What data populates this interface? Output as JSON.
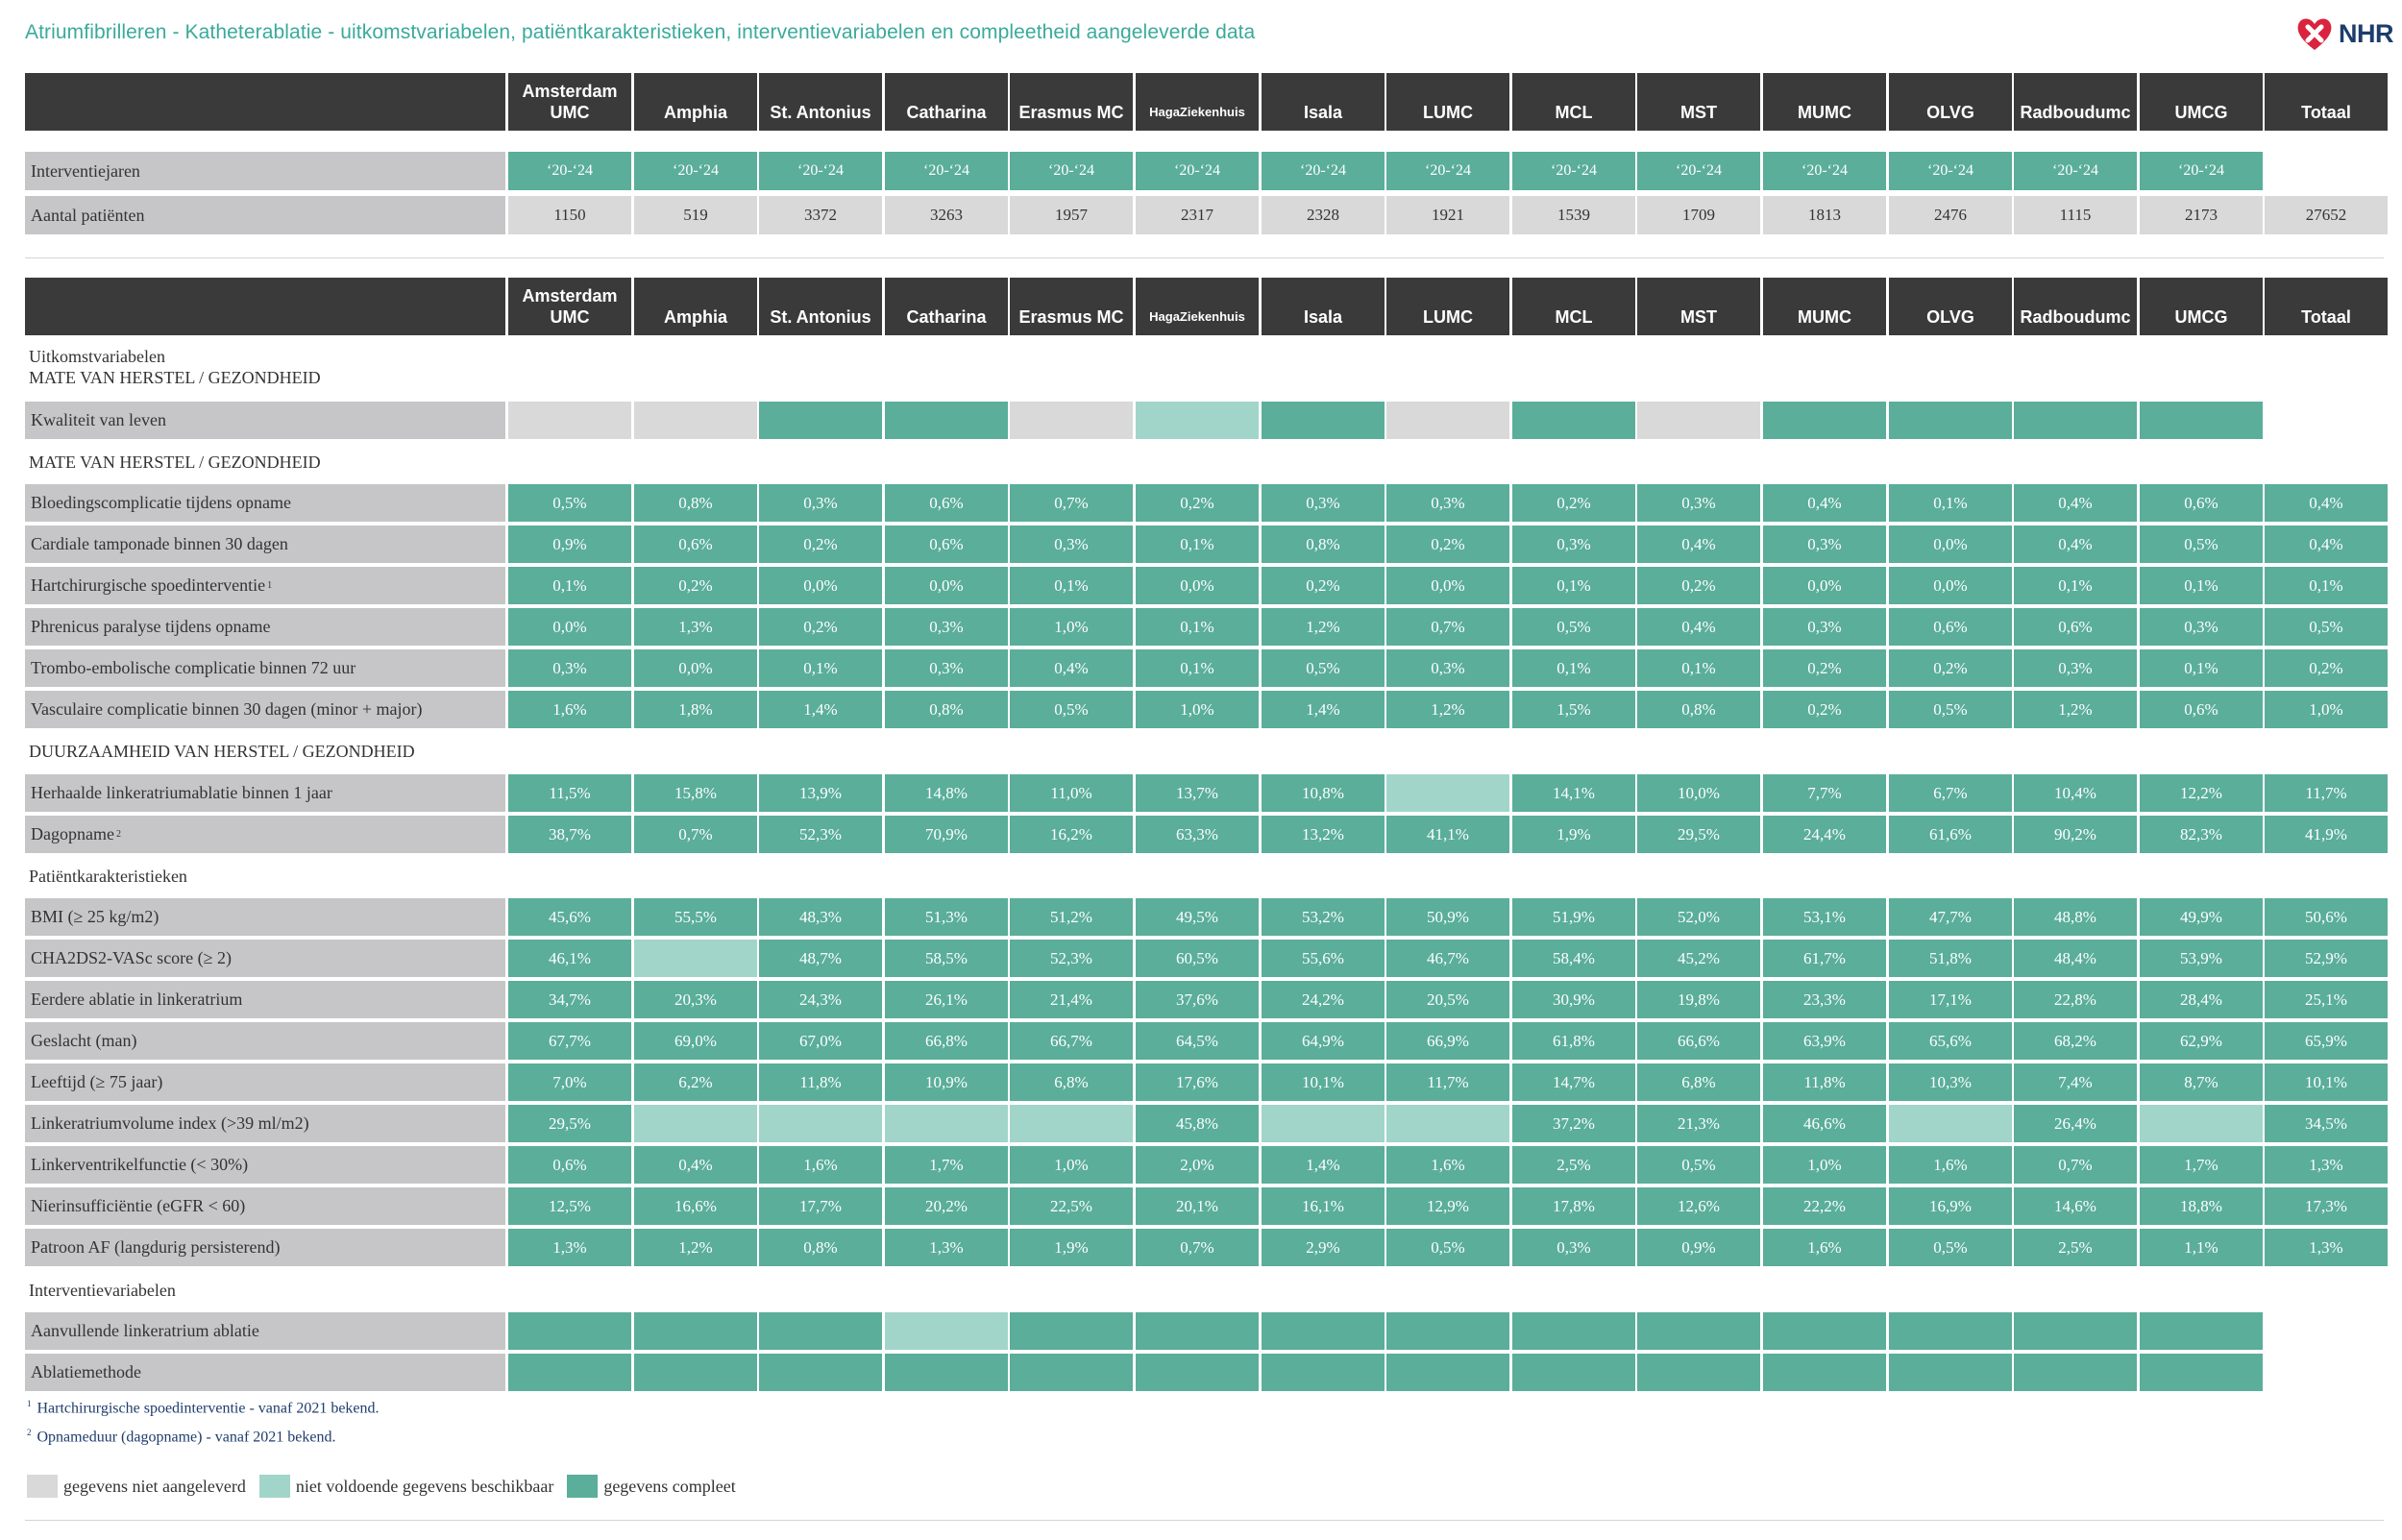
{
  "page": {
    "title": "Atriumfibrilleren - Katheterablatie - uitkomstvariabelen, patiëntkarakteristieken, interventievariabelen en compleetheid aangeleverde data",
    "logo_text": "NHR"
  },
  "hospitals": [
    {
      "line1": "Amsterdam",
      "line2": "UMC"
    },
    {
      "line1": "",
      "line2": "Amphia"
    },
    {
      "line1": "",
      "line2": "St. Antonius"
    },
    {
      "line1": "",
      "line2": "Catharina"
    },
    {
      "line1": "",
      "line2": "Erasmus MC"
    },
    {
      "line1": "",
      "line2": "HagaZiekenhuis",
      "small": true
    },
    {
      "line1": "",
      "line2": "Isala"
    },
    {
      "line1": "",
      "line2": "LUMC"
    },
    {
      "line1": "",
      "line2": "MCL"
    },
    {
      "line1": "",
      "line2": "MST"
    },
    {
      "line1": "",
      "line2": "MUMC"
    },
    {
      "line1": "",
      "line2": "OLVG"
    },
    {
      "line1": "",
      "line2": "Radboudumc"
    },
    {
      "line1": "",
      "line2": "UMCG"
    },
    {
      "line1": "",
      "line2": "Totaal"
    }
  ],
  "top_table": {
    "rows": [
      {
        "label": "Interventiejaren",
        "kind": "years",
        "values": [
          "‘20-‘24",
          "‘20-‘24",
          "‘20-‘24",
          "‘20-‘24",
          "‘20-‘24",
          "‘20-‘24",
          "‘20-‘24",
          "‘20-‘24",
          "‘20-‘24",
          "‘20-‘24",
          "‘20-‘24",
          "‘20-‘24",
          "‘20-‘24",
          "‘20-‘24",
          ""
        ]
      },
      {
        "label": "Aantal patiënten",
        "kind": "info",
        "values": [
          "1150",
          "519",
          "3372",
          "3263",
          "1957",
          "2317",
          "2328",
          "1921",
          "1539",
          "1709",
          "1813",
          "2476",
          "1115",
          "2173",
          "27652"
        ]
      }
    ]
  },
  "sections": {
    "uitkomst_line1": "Uitkomstvariabelen",
    "uitkomst_line2": "MATE VAN HERSTEL / GEZONDHEID",
    "mate": "MATE VAN HERSTEL / GEZONDHEID",
    "duurzaamheid": "DUURZAAMHEID VAN HERSTEL / GEZONDHEID",
    "patient": "Patiëntkarakteristieken",
    "interventie": "Interventievariabelen"
  },
  "main_rows": [
    {
      "label": "Kwaliteit van leven",
      "sup": "",
      "status": [
        "n",
        "n",
        "c",
        "c",
        "n",
        "i",
        "c",
        "n",
        "c",
        "n",
        "c",
        "c",
        "c",
        "c",
        "b"
      ],
      "values": [
        "",
        "",
        "",
        "",
        "",
        "",
        "",
        "",
        "",
        "",
        "",
        "",
        "",
        "",
        ""
      ]
    },
    {
      "label": "Bloedingscomplicatie tijdens opname",
      "sup": "",
      "status": [
        "c",
        "c",
        "c",
        "c",
        "c",
        "c",
        "c",
        "c",
        "c",
        "c",
        "c",
        "c",
        "c",
        "c",
        "c"
      ],
      "values": [
        "0,5%",
        "0,8%",
        "0,3%",
        "0,6%",
        "0,7%",
        "0,2%",
        "0,3%",
        "0,3%",
        "0,2%",
        "0,3%",
        "0,4%",
        "0,1%",
        "0,4%",
        "0,6%",
        "0,4%"
      ]
    },
    {
      "label": "Cardiale tamponade binnen 30 dagen",
      "sup": "",
      "status": [
        "c",
        "c",
        "c",
        "c",
        "c",
        "c",
        "c",
        "c",
        "c",
        "c",
        "c",
        "c",
        "c",
        "c",
        "c"
      ],
      "values": [
        "0,9%",
        "0,6%",
        "0,2%",
        "0,6%",
        "0,3%",
        "0,1%",
        "0,8%",
        "0,2%",
        "0,3%",
        "0,4%",
        "0,3%",
        "0,0%",
        "0,4%",
        "0,5%",
        "0,4%"
      ]
    },
    {
      "label": "Hartchirurgische spoedinterventie",
      "sup": "1",
      "status": [
        "c",
        "c",
        "c",
        "c",
        "c",
        "c",
        "c",
        "c",
        "c",
        "c",
        "c",
        "c",
        "c",
        "c",
        "c"
      ],
      "values": [
        "0,1%",
        "0,2%",
        "0,0%",
        "0,0%",
        "0,1%",
        "0,0%",
        "0,2%",
        "0,0%",
        "0,1%",
        "0,2%",
        "0,0%",
        "0,0%",
        "0,1%",
        "0,1%",
        "0,1%"
      ]
    },
    {
      "label": "Phrenicus paralyse tijdens opname",
      "sup": "",
      "status": [
        "c",
        "c",
        "c",
        "c",
        "c",
        "c",
        "c",
        "c",
        "c",
        "c",
        "c",
        "c",
        "c",
        "c",
        "c"
      ],
      "values": [
        "0,0%",
        "1,3%",
        "0,2%",
        "0,3%",
        "1,0%",
        "0,1%",
        "1,2%",
        "0,7%",
        "0,5%",
        "0,4%",
        "0,3%",
        "0,6%",
        "0,6%",
        "0,3%",
        "0,5%"
      ]
    },
    {
      "label": "Trombo-embolische complicatie binnen 72 uur",
      "sup": "",
      "status": [
        "c",
        "c",
        "c",
        "c",
        "c",
        "c",
        "c",
        "c",
        "c",
        "c",
        "c",
        "c",
        "c",
        "c",
        "c"
      ],
      "values": [
        "0,3%",
        "0,0%",
        "0,1%",
        "0,3%",
        "0,4%",
        "0,1%",
        "0,5%",
        "0,3%",
        "0,1%",
        "0,1%",
        "0,2%",
        "0,2%",
        "0,3%",
        "0,1%",
        "0,2%"
      ]
    },
    {
      "label": "Vasculaire complicatie binnen 30 dagen (minor + major)",
      "sup": "",
      "status": [
        "c",
        "c",
        "c",
        "c",
        "c",
        "c",
        "c",
        "c",
        "c",
        "c",
        "c",
        "c",
        "c",
        "c",
        "c"
      ],
      "values": [
        "1,6%",
        "1,8%",
        "1,4%",
        "0,8%",
        "0,5%",
        "1,0%",
        "1,4%",
        "1,2%",
        "1,5%",
        "0,8%",
        "0,2%",
        "0,5%",
        "1,2%",
        "0,6%",
        "1,0%"
      ]
    },
    {
      "label": "Herhaalde linkeratriumablatie binnen 1 jaar",
      "sup": "",
      "status": [
        "c",
        "c",
        "c",
        "c",
        "c",
        "c",
        "c",
        "i",
        "c",
        "c",
        "c",
        "c",
        "c",
        "c",
        "c"
      ],
      "values": [
        "11,5%",
        "15,8%",
        "13,9%",
        "14,8%",
        "11,0%",
        "13,7%",
        "10,8%",
        "",
        "14,1%",
        "10,0%",
        "7,7%",
        "6,7%",
        "10,4%",
        "12,2%",
        "11,7%"
      ]
    },
    {
      "label": "Dagopname",
      "sup": "2",
      "status": [
        "c",
        "c",
        "c",
        "c",
        "c",
        "c",
        "c",
        "c",
        "c",
        "c",
        "c",
        "c",
        "c",
        "c",
        "c"
      ],
      "values": [
        "38,7%",
        "0,7%",
        "52,3%",
        "70,9%",
        "16,2%",
        "63,3%",
        "13,2%",
        "41,1%",
        "1,9%",
        "29,5%",
        "24,4%",
        "61,6%",
        "90,2%",
        "82,3%",
        "41,9%"
      ]
    },
    {
      "label": "BMI (≥ 25 kg/m2)",
      "sup": "",
      "status": [
        "c",
        "c",
        "c",
        "c",
        "c",
        "c",
        "c",
        "c",
        "c",
        "c",
        "c",
        "c",
        "c",
        "c",
        "c"
      ],
      "values": [
        "45,6%",
        "55,5%",
        "48,3%",
        "51,3%",
        "51,2%",
        "49,5%",
        "53,2%",
        "50,9%",
        "51,9%",
        "52,0%",
        "53,1%",
        "47,7%",
        "48,8%",
        "49,9%",
        "50,6%"
      ]
    },
    {
      "label": "CHA2DS2-VASc score (≥ 2)",
      "sup": "",
      "status": [
        "c",
        "i",
        "c",
        "c",
        "c",
        "c",
        "c",
        "c",
        "c",
        "c",
        "c",
        "c",
        "c",
        "c",
        "c"
      ],
      "values": [
        "46,1%",
        "",
        "48,7%",
        "58,5%",
        "52,3%",
        "60,5%",
        "55,6%",
        "46,7%",
        "58,4%",
        "45,2%",
        "61,7%",
        "51,8%",
        "48,4%",
        "53,9%",
        "52,9%"
      ]
    },
    {
      "label": "Eerdere ablatie in linkeratrium",
      "sup": "",
      "status": [
        "c",
        "c",
        "c",
        "c",
        "c",
        "c",
        "c",
        "c",
        "c",
        "c",
        "c",
        "c",
        "c",
        "c",
        "c"
      ],
      "values": [
        "34,7%",
        "20,3%",
        "24,3%",
        "26,1%",
        "21,4%",
        "37,6%",
        "24,2%",
        "20,5%",
        "30,9%",
        "19,8%",
        "23,3%",
        "17,1%",
        "22,8%",
        "28,4%",
        "25,1%"
      ]
    },
    {
      "label": "Geslacht (man)",
      "sup": "",
      "status": [
        "c",
        "c",
        "c",
        "c",
        "c",
        "c",
        "c",
        "c",
        "c",
        "c",
        "c",
        "c",
        "c",
        "c",
        "c"
      ],
      "values": [
        "67,7%",
        "69,0%",
        "67,0%",
        "66,8%",
        "66,7%",
        "64,5%",
        "64,9%",
        "66,9%",
        "61,8%",
        "66,6%",
        "63,9%",
        "65,6%",
        "68,2%",
        "62,9%",
        "65,9%"
      ]
    },
    {
      "label": "Leeftijd (≥ 75 jaar)",
      "sup": "",
      "status": [
        "c",
        "c",
        "c",
        "c",
        "c",
        "c",
        "c",
        "c",
        "c",
        "c",
        "c",
        "c",
        "c",
        "c",
        "c"
      ],
      "values": [
        "7,0%",
        "6,2%",
        "11,8%",
        "10,9%",
        "6,8%",
        "17,6%",
        "10,1%",
        "11,7%",
        "14,7%",
        "6,8%",
        "11,8%",
        "10,3%",
        "7,4%",
        "8,7%",
        "10,1%"
      ]
    },
    {
      "label": "Linkeratriumvolume index (>39 ml/m2)",
      "sup": "",
      "status": [
        "c",
        "i",
        "i",
        "i",
        "i",
        "c",
        "i",
        "i",
        "c",
        "c",
        "c",
        "i",
        "c",
        "i",
        "c"
      ],
      "values": [
        "29,5%",
        "",
        "",
        "",
        "",
        "45,8%",
        "",
        "",
        "37,2%",
        "21,3%",
        "46,6%",
        "",
        "26,4%",
        "",
        "34,5%"
      ]
    },
    {
      "label": "Linkerventrikelfunctie (< 30%)",
      "sup": "",
      "status": [
        "c",
        "c",
        "c",
        "c",
        "c",
        "c",
        "c",
        "c",
        "c",
        "c",
        "c",
        "c",
        "c",
        "c",
        "c"
      ],
      "values": [
        "0,6%",
        "0,4%",
        "1,6%",
        "1,7%",
        "1,0%",
        "2,0%",
        "1,4%",
        "1,6%",
        "2,5%",
        "0,5%",
        "1,0%",
        "1,6%",
        "0,7%",
        "1,7%",
        "1,3%"
      ]
    },
    {
      "label": "Nierinsufficiëntie (eGFR < 60)",
      "sup": "",
      "status": [
        "c",
        "c",
        "c",
        "c",
        "c",
        "c",
        "c",
        "c",
        "c",
        "c",
        "c",
        "c",
        "c",
        "c",
        "c"
      ],
      "values": [
        "12,5%",
        "16,6%",
        "17,7%",
        "20,2%",
        "22,5%",
        "20,1%",
        "16,1%",
        "12,9%",
        "17,8%",
        "12,6%",
        "22,2%",
        "16,9%",
        "14,6%",
        "18,8%",
        "17,3%"
      ]
    },
    {
      "label": "Patroon AF (langdurig persisterend)",
      "sup": "",
      "status": [
        "c",
        "c",
        "c",
        "c",
        "c",
        "c",
        "c",
        "c",
        "c",
        "c",
        "c",
        "c",
        "c",
        "c",
        "c"
      ],
      "values": [
        "1,3%",
        "1,2%",
        "0,8%",
        "1,3%",
        "1,9%",
        "0,7%",
        "2,9%",
        "0,5%",
        "0,3%",
        "0,9%",
        "1,6%",
        "0,5%",
        "2,5%",
        "1,1%",
        "1,3%"
      ]
    },
    {
      "label": "Aanvullende linkeratrium ablatie",
      "sup": "",
      "status": [
        "c",
        "c",
        "c",
        "i",
        "c",
        "c",
        "c",
        "c",
        "c",
        "c",
        "c",
        "c",
        "c",
        "c",
        "b"
      ],
      "values": [
        "",
        "",
        "",
        "",
        "",
        "",
        "",
        "",
        "",
        "",
        "",
        "",
        "",
        "",
        ""
      ]
    },
    {
      "label": "Ablatiemethode",
      "sup": "",
      "status": [
        "c",
        "c",
        "c",
        "c",
        "c",
        "c",
        "c",
        "c",
        "c",
        "c",
        "c",
        "c",
        "c",
        "c",
        "b"
      ],
      "values": [
        "",
        "",
        "",
        "",
        "",
        "",
        "",
        "",
        "",
        "",
        "",
        "",
        "",
        "",
        ""
      ]
    }
  ],
  "footnotes": [
    {
      "sup": "1",
      "text": "Hartchirurgische spoedinterventie - vanaf 2021 bekend."
    },
    {
      "sup": "2",
      "text": "Opnameduur (dagopname) - vanaf 2021 bekend."
    }
  ],
  "legend": [
    {
      "label": "gegevens niet aangeleverd",
      "color": "#d9d9d9"
    },
    {
      "label": "niet voldoende gegevens beschikbaar",
      "color": "#a2d5c9"
    },
    {
      "label": "gegevens compleet",
      "color": "#5aae9a"
    }
  ],
  "colors": {
    "complete": "#5aae9a",
    "insufficient": "#a2d5c9",
    "not_delivered": "#d9d9d9",
    "header": "#3a3a3a",
    "label_bg": "#c6c6c8",
    "title": "#3aaa9b"
  }
}
